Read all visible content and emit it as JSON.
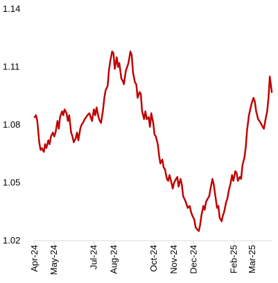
{
  "chart_data": {
    "type": "line",
    "title": "",
    "xlabel": "",
    "ylabel": "",
    "ylim": [
      1.02,
      1.14
    ],
    "y_ticks": [
      1.02,
      1.05,
      1.08,
      1.11,
      1.14
    ],
    "y_tick_labels": [
      "1.02",
      "1.05",
      "1.08",
      "1.11",
      "1.14"
    ],
    "x_range": [
      "2024-04-01",
      "2025-03-31"
    ],
    "x_ticks": [
      "2024-04-01",
      "2024-05-01",
      "2024-07-01",
      "2024-08-01",
      "2024-10-01",
      "2024-11-01",
      "2024-12-01",
      "2025-02-01",
      "2025-03-01"
    ],
    "x_tick_labels": [
      "Apr-24",
      "May-24",
      "Jul-24",
      "Aug-24",
      "Oct-24",
      "Nov-24",
      "Dec-24",
      "Feb-25",
      "Mar-25"
    ],
    "grid": false,
    "legend": "none",
    "colors": {
      "line": "#c00000",
      "axis": "#d9d9d9",
      "text": "#000000"
    },
    "series": [
      {
        "x": [
          "2024-04-01",
          "2024-04-03",
          "2024-04-05",
          "2024-04-08",
          "2024-04-10",
          "2024-04-12",
          "2024-04-15",
          "2024-04-17",
          "2024-04-19",
          "2024-04-22",
          "2024-04-24",
          "2024-04-26",
          "2024-04-29",
          "2024-05-01",
          "2024-05-03",
          "2024-05-06",
          "2024-05-08",
          "2024-05-10",
          "2024-05-13",
          "2024-05-15",
          "2024-05-17",
          "2024-05-20",
          "2024-05-22",
          "2024-05-24",
          "2024-05-27",
          "2024-05-29",
          "2024-05-31",
          "2024-06-03",
          "2024-06-05",
          "2024-06-07",
          "2024-06-10",
          "2024-06-12",
          "2024-06-14",
          "2024-06-17",
          "2024-06-19",
          "2024-06-21",
          "2024-06-24",
          "2024-06-26",
          "2024-06-28",
          "2024-07-01",
          "2024-07-03",
          "2024-07-05",
          "2024-07-08",
          "2024-07-10",
          "2024-07-12",
          "2024-07-15",
          "2024-07-17",
          "2024-07-19",
          "2024-07-22",
          "2024-07-24",
          "2024-07-26",
          "2024-07-29",
          "2024-07-31",
          "2024-08-02",
          "2024-08-05",
          "2024-08-07",
          "2024-08-09",
          "2024-08-12",
          "2024-08-14",
          "2024-08-16",
          "2024-08-19",
          "2024-08-21",
          "2024-08-23",
          "2024-08-26",
          "2024-08-28",
          "2024-08-30",
          "2024-09-02",
          "2024-09-04",
          "2024-09-06",
          "2024-09-09",
          "2024-09-11",
          "2024-09-13",
          "2024-09-16",
          "2024-09-18",
          "2024-09-20",
          "2024-09-23",
          "2024-09-25",
          "2024-09-27",
          "2024-09-30",
          "2024-10-02",
          "2024-10-04",
          "2024-10-07",
          "2024-10-09",
          "2024-10-11",
          "2024-10-14",
          "2024-10-16",
          "2024-10-18",
          "2024-10-21",
          "2024-10-23",
          "2024-10-25",
          "2024-10-28",
          "2024-10-30",
          "2024-11-01",
          "2024-11-04",
          "2024-11-06",
          "2024-11-08",
          "2024-11-11",
          "2024-11-13",
          "2024-11-15",
          "2024-11-18",
          "2024-11-20",
          "2024-11-22",
          "2024-11-25",
          "2024-11-27",
          "2024-11-29",
          "2024-12-02",
          "2024-12-04",
          "2024-12-06",
          "2024-12-09",
          "2024-12-11",
          "2024-12-13",
          "2024-12-16",
          "2024-12-18",
          "2024-12-20",
          "2024-12-23",
          "2024-12-25",
          "2024-12-27",
          "2024-12-30",
          "2025-01-01",
          "2025-01-03",
          "2025-01-06",
          "2025-01-08",
          "2025-01-10",
          "2025-01-13",
          "2025-01-15",
          "2025-01-17",
          "2025-01-20",
          "2025-01-22",
          "2025-01-24",
          "2025-01-27",
          "2025-01-29",
          "2025-01-31",
          "2025-02-03",
          "2025-02-05",
          "2025-02-07",
          "2025-02-10",
          "2025-02-12",
          "2025-02-14",
          "2025-02-17",
          "2025-02-19",
          "2025-02-21",
          "2025-02-24",
          "2025-02-26",
          "2025-02-28",
          "2025-03-03",
          "2025-03-05",
          "2025-03-07",
          "2025-03-10",
          "2025-03-12",
          "2025-03-14",
          "2025-03-17",
          "2025-03-19",
          "2025-03-21",
          "2025-03-24",
          "2025-03-26",
          "2025-03-28",
          "2025-03-31"
        ],
        "y": [
          1.084,
          1.085,
          1.082,
          1.071,
          1.067,
          1.068,
          1.066,
          1.07,
          1.068,
          1.072,
          1.07,
          1.074,
          1.076,
          1.074,
          1.076,
          1.082,
          1.078,
          1.084,
          1.087,
          1.085,
          1.088,
          1.086,
          1.082,
          1.085,
          1.076,
          1.074,
          1.071,
          1.073,
          1.076,
          1.072,
          1.078,
          1.08,
          1.081,
          1.083,
          1.084,
          1.085,
          1.086,
          1.084,
          1.082,
          1.088,
          1.085,
          1.089,
          1.084,
          1.082,
          1.081,
          1.088,
          1.094,
          1.098,
          1.1,
          1.108,
          1.113,
          1.118,
          1.117,
          1.109,
          1.115,
          1.11,
          1.112,
          1.104,
          1.103,
          1.101,
          1.108,
          1.11,
          1.112,
          1.118,
          1.116,
          1.107,
          1.102,
          1.101,
          1.094,
          1.097,
          1.096,
          1.087,
          1.083,
          1.087,
          1.083,
          1.084,
          1.079,
          1.086,
          1.081,
          1.075,
          1.074,
          1.07,
          1.064,
          1.06,
          1.062,
          1.058,
          1.057,
          1.052,
          1.051,
          1.054,
          1.05,
          1.047,
          1.05,
          1.052,
          1.053,
          1.048,
          1.052,
          1.049,
          1.043,
          1.041,
          1.039,
          1.037,
          1.038,
          1.035,
          1.033,
          1.031,
          1.027,
          1.026,
          1.025,
          1.028,
          1.033,
          1.038,
          1.036,
          1.04,
          1.042,
          1.043,
          1.047,
          1.052,
          1.049,
          1.044,
          1.037,
          1.038,
          1.032,
          1.03,
          1.033,
          1.035,
          1.04,
          1.042,
          1.046,
          1.05,
          1.054,
          1.051,
          1.056,
          1.055,
          1.051,
          1.053,
          1.052,
          1.059,
          1.063,
          1.068,
          1.077,
          1.085,
          1.088,
          1.091,
          1.094,
          1.092,
          1.087,
          1.083,
          1.082,
          1.081,
          1.079,
          1.078,
          1.082,
          1.087,
          1.094,
          1.105,
          1.097
        ]
      }
    ]
  }
}
